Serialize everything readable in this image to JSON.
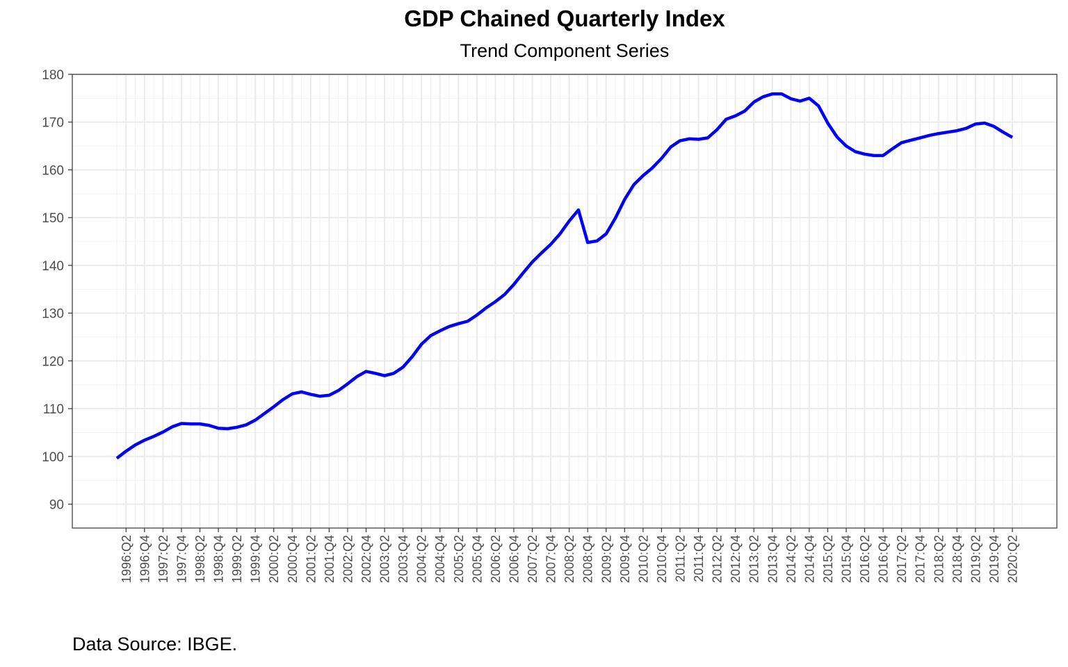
{
  "chart_data": {
    "type": "line",
    "title": "GDP Chained Quarterly Index",
    "subtitle": "Trend Component Series",
    "caption": "Data Source: IBGE.",
    "xlabel": "",
    "ylabel": "",
    "ylim": [
      85,
      180
    ],
    "yticks": [
      90,
      100,
      110,
      120,
      130,
      140,
      150,
      160,
      170,
      180
    ],
    "grid": true,
    "legend": "none",
    "line_color": "#0000ff",
    "x_tick_labels": [
      "1996:Q2",
      "1996:Q4",
      "1997:Q2",
      "1997:Q4",
      "1998:Q2",
      "1998:Q4",
      "1999:Q2",
      "1999:Q4",
      "2000:Q2",
      "2000:Q4",
      "2001:Q2",
      "2001:Q4",
      "2002:Q2",
      "2002:Q4",
      "2003:Q2",
      "2003:Q4",
      "2004:Q2",
      "2004:Q4",
      "2005:Q2",
      "2005:Q4",
      "2006:Q2",
      "2006:Q4",
      "2007:Q2",
      "2007:Q4",
      "2008:Q2",
      "2008:Q4",
      "2009:Q2",
      "2009:Q4",
      "2010:Q2",
      "2010:Q4",
      "2011:Q2",
      "2011:Q4",
      "2012:Q2",
      "2012:Q4",
      "2013:Q2",
      "2013:Q4",
      "2014:Q2",
      "2014:Q4",
      "2015:Q2",
      "2015:Q4",
      "2016:Q2",
      "2016:Q4",
      "2017:Q2",
      "2017:Q4",
      "2018:Q2",
      "2018:Q4",
      "2019:Q2",
      "2019:Q4",
      "2020:Q2"
    ],
    "series": [
      {
        "x": [
          "1996:Q1",
          "1996:Q2",
          "1996:Q3",
          "1996:Q4",
          "1997:Q1",
          "1997:Q2",
          "1997:Q3",
          "1997:Q4",
          "1998:Q1",
          "1998:Q2",
          "1998:Q3",
          "1998:Q4",
          "1999:Q1",
          "1999:Q2",
          "1999:Q3",
          "1999:Q4",
          "2000:Q1",
          "2000:Q2",
          "2000:Q3",
          "2000:Q4",
          "2001:Q1",
          "2001:Q2",
          "2001:Q3",
          "2001:Q4",
          "2002:Q1",
          "2002:Q2",
          "2002:Q3",
          "2002:Q4",
          "2003:Q1",
          "2003:Q2",
          "2003:Q3",
          "2003:Q4",
          "2004:Q1",
          "2004:Q2",
          "2004:Q3",
          "2004:Q4",
          "2005:Q1",
          "2005:Q2",
          "2005:Q3",
          "2005:Q4",
          "2006:Q1",
          "2006:Q2",
          "2006:Q3",
          "2006:Q4",
          "2007:Q1",
          "2007:Q2",
          "2007:Q3",
          "2007:Q4",
          "2008:Q1",
          "2008:Q2",
          "2008:Q3",
          "2008:Q4",
          "2009:Q1",
          "2009:Q2",
          "2009:Q3",
          "2009:Q4",
          "2010:Q1",
          "2010:Q2",
          "2010:Q3",
          "2010:Q4",
          "2011:Q1",
          "2011:Q2",
          "2011:Q3",
          "2011:Q4",
          "2012:Q1",
          "2012:Q2",
          "2012:Q3",
          "2012:Q4",
          "2013:Q1",
          "2013:Q2",
          "2013:Q3",
          "2013:Q4",
          "2014:Q1",
          "2014:Q2",
          "2014:Q3",
          "2014:Q4",
          "2015:Q1",
          "2015:Q2",
          "2015:Q3",
          "2015:Q4",
          "2016:Q1",
          "2016:Q2",
          "2016:Q3",
          "2016:Q4",
          "2017:Q1",
          "2017:Q2",
          "2017:Q3",
          "2017:Q4",
          "2018:Q1",
          "2018:Q2",
          "2018:Q3",
          "2018:Q4",
          "2019:Q1",
          "2019:Q2",
          "2019:Q3",
          "2019:Q4",
          "2020:Q1",
          "2020:Q2"
        ],
        "values": [
          99.6,
          101.1,
          102.4,
          103.4,
          104.2,
          105.1,
          106.2,
          106.9,
          106.8,
          106.8,
          106.5,
          105.9,
          105.8,
          106.1,
          106.6,
          107.6,
          109.0,
          110.4,
          111.9,
          113.1,
          113.5,
          113.0,
          112.6,
          112.8,
          113.8,
          115.2,
          116.7,
          117.8,
          117.4,
          116.9,
          117.4,
          118.7,
          120.9,
          123.5,
          125.3,
          126.3,
          127.2,
          127.8,
          128.3,
          129.6,
          131.1,
          132.4,
          133.9,
          136.0,
          138.4,
          140.7,
          142.6,
          144.4,
          146.6,
          149.3,
          151.6,
          144.8,
          145.1,
          146.6,
          149.9,
          153.8,
          156.9,
          158.8,
          160.4,
          162.4,
          164.8,
          166.1,
          166.5,
          166.4,
          166.7,
          168.4,
          170.6,
          171.3,
          172.3,
          174.2,
          175.3,
          175.9,
          175.9,
          174.9,
          174.4,
          175.0,
          173.4,
          169.8,
          166.9,
          165.0,
          163.8,
          163.3,
          163.0,
          163.0,
          164.4,
          165.7,
          166.2,
          166.7,
          167.2,
          167.6,
          167.9,
          168.2,
          168.7,
          169.6,
          169.8,
          169.1,
          167.9,
          166.8
        ]
      }
    ]
  }
}
